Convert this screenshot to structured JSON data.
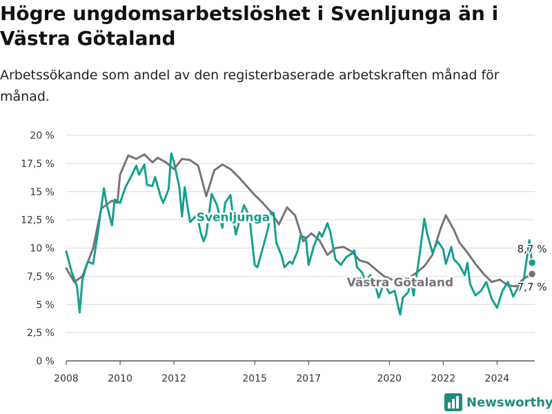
{
  "title": "Högre ungdomsarbetslöshet i Svenljunga än i Västra Götaland",
  "subtitle": "Arbetssökande som andel av den registerbaserade arbetskraften månad för månad.",
  "brand": {
    "name": "Newsworthy",
    "color": "#1f8c7e"
  },
  "chart_data": {
    "type": "line",
    "title": "Högre ungdomsarbetslöshet i Svenljunga än i Västra Götaland",
    "subtitle": "Arbetssökande som andel av den registerbaserade arbetskraften månad för månad.",
    "xlabel": "",
    "ylabel": "",
    "xlim": [
      2008.0,
      2025.4
    ],
    "ylim": [
      0,
      20
    ],
    "x_ticks": [
      2008,
      2010,
      2012,
      2015,
      2017,
      2020,
      2022,
      2024
    ],
    "x_tick_labels": [
      "2008",
      "2010",
      "2012",
      "2015",
      "2017",
      "2020",
      "2022",
      "2024"
    ],
    "y_ticks": [
      0,
      2.5,
      5,
      7.5,
      10,
      12.5,
      15,
      17.5,
      20
    ],
    "y_tick_labels": [
      "0 %",
      "2,5 %",
      "5 %",
      "7,5 %",
      "10 %",
      "12,5 %",
      "15 %",
      "17,5 %",
      "20 %"
    ],
    "grid": true,
    "legend": "direct labels on lines",
    "series": [
      {
        "name": "Svenljunga",
        "color": "#12a08c",
        "end_label": "8,7 %",
        "points": [
          [
            2008.0,
            9.7
          ],
          [
            2008.2,
            7.9
          ],
          [
            2008.4,
            6.6
          ],
          [
            2008.5,
            4.3
          ],
          [
            2008.6,
            7.2
          ],
          [
            2008.8,
            8.8
          ],
          [
            2009.0,
            8.6
          ],
          [
            2009.2,
            11.8
          ],
          [
            2009.4,
            15.3
          ],
          [
            2009.5,
            13.9
          ],
          [
            2009.7,
            12.0
          ],
          [
            2009.8,
            14.3
          ],
          [
            2010.0,
            14.0
          ],
          [
            2010.2,
            15.4
          ],
          [
            2010.4,
            16.3
          ],
          [
            2010.6,
            17.3
          ],
          [
            2010.7,
            16.5
          ],
          [
            2010.9,
            17.4
          ],
          [
            2011.0,
            15.6
          ],
          [
            2011.2,
            15.5
          ],
          [
            2011.3,
            16.3
          ],
          [
            2011.5,
            14.6
          ],
          [
            2011.6,
            14.0
          ],
          [
            2011.8,
            15.2
          ],
          [
            2011.9,
            18.4
          ],
          [
            2012.0,
            17.6
          ],
          [
            2012.2,
            15.4
          ],
          [
            2012.3,
            12.8
          ],
          [
            2012.4,
            15.4
          ],
          [
            2012.5,
            13.7
          ],
          [
            2012.6,
            12.3
          ],
          [
            2012.8,
            12.8
          ],
          [
            2012.9,
            12.5
          ],
          [
            2013.0,
            11.3
          ],
          [
            2013.1,
            10.6
          ],
          [
            2013.2,
            11.2
          ],
          [
            2013.4,
            14.8
          ],
          [
            2013.6,
            13.8
          ],
          [
            2013.8,
            11.8
          ],
          [
            2013.9,
            14.0
          ],
          [
            2014.1,
            14.7
          ],
          [
            2014.2,
            12.7
          ],
          [
            2014.3,
            11.2
          ],
          [
            2014.5,
            13.0
          ],
          [
            2014.6,
            13.8
          ],
          [
            2014.8,
            12.8
          ],
          [
            2015.0,
            8.5
          ],
          [
            2015.1,
            8.3
          ],
          [
            2015.3,
            10.0
          ],
          [
            2015.5,
            11.8
          ],
          [
            2015.6,
            13.2
          ],
          [
            2015.7,
            13.1
          ],
          [
            2015.8,
            10.5
          ],
          [
            2016.0,
            9.3
          ],
          [
            2016.1,
            8.3
          ],
          [
            2016.3,
            8.8
          ],
          [
            2016.4,
            8.6
          ],
          [
            2016.6,
            9.8
          ],
          [
            2016.7,
            11.1
          ],
          [
            2016.9,
            10.9
          ],
          [
            2017.0,
            8.5
          ],
          [
            2017.2,
            10.2
          ],
          [
            2017.4,
            11.4
          ],
          [
            2017.5,
            11.0
          ],
          [
            2017.7,
            12.2
          ],
          [
            2017.8,
            11.5
          ],
          [
            2018.0,
            9.0
          ],
          [
            2018.2,
            8.5
          ],
          [
            2018.4,
            9.2
          ],
          [
            2018.6,
            9.5
          ],
          [
            2018.7,
            9.8
          ],
          [
            2018.8,
            8.3
          ],
          [
            2019.0,
            7.8
          ],
          [
            2019.1,
            7.0
          ],
          [
            2019.3,
            7.6
          ],
          [
            2019.5,
            6.5
          ],
          [
            2019.6,
            5.6
          ],
          [
            2019.8,
            6.9
          ],
          [
            2020.0,
            6.0
          ],
          [
            2020.2,
            6.2
          ],
          [
            2020.3,
            5.1
          ],
          [
            2020.4,
            4.1
          ],
          [
            2020.5,
            5.6
          ],
          [
            2020.7,
            6.1
          ],
          [
            2020.8,
            7.2
          ],
          [
            2020.9,
            5.8
          ],
          [
            2021.1,
            9.0
          ],
          [
            2021.3,
            12.6
          ],
          [
            2021.4,
            11.3
          ],
          [
            2021.6,
            9.6
          ],
          [
            2021.8,
            10.6
          ],
          [
            2022.0,
            9.9
          ],
          [
            2022.1,
            8.6
          ],
          [
            2022.3,
            10.1
          ],
          [
            2022.4,
            9.0
          ],
          [
            2022.6,
            8.5
          ],
          [
            2022.8,
            7.6
          ],
          [
            2022.9,
            8.7
          ],
          [
            2023.0,
            6.8
          ],
          [
            2023.2,
            5.8
          ],
          [
            2023.4,
            6.2
          ],
          [
            2023.6,
            7.0
          ],
          [
            2023.8,
            5.5
          ],
          [
            2024.0,
            4.7
          ],
          [
            2024.2,
            6.2
          ],
          [
            2024.4,
            7.0
          ],
          [
            2024.6,
            5.7
          ],
          [
            2024.8,
            6.6
          ],
          [
            2025.0,
            7.3
          ],
          [
            2025.1,
            9.0
          ],
          [
            2025.2,
            10.7
          ],
          [
            2025.3,
            8.7
          ]
        ]
      },
      {
        "name": "Västra Götaland",
        "color": "#777278",
        "end_label": "7,7 %",
        "points": [
          [
            2008.0,
            8.2
          ],
          [
            2008.3,
            7.0
          ],
          [
            2008.6,
            7.5
          ],
          [
            2009.0,
            10.0
          ],
          [
            2009.3,
            13.5
          ],
          [
            2009.7,
            14.2
          ],
          [
            2009.9,
            14.0
          ],
          [
            2010.0,
            16.5
          ],
          [
            2010.3,
            18.2
          ],
          [
            2010.6,
            17.9
          ],
          [
            2010.9,
            18.3
          ],
          [
            2011.2,
            17.6
          ],
          [
            2011.4,
            18.0
          ],
          [
            2011.7,
            17.6
          ],
          [
            2012.0,
            17.0
          ],
          [
            2012.3,
            17.9
          ],
          [
            2012.6,
            17.8
          ],
          [
            2012.9,
            17.3
          ],
          [
            2013.2,
            14.6
          ],
          [
            2013.5,
            16.9
          ],
          [
            2013.8,
            17.4
          ],
          [
            2014.1,
            17.0
          ],
          [
            2014.4,
            16.3
          ],
          [
            2014.7,
            15.5
          ],
          [
            2015.0,
            14.7
          ],
          [
            2015.3,
            14.0
          ],
          [
            2015.6,
            13.2
          ],
          [
            2015.9,
            12.1
          ],
          [
            2016.2,
            13.6
          ],
          [
            2016.5,
            12.9
          ],
          [
            2016.8,
            10.6
          ],
          [
            2017.1,
            11.3
          ],
          [
            2017.4,
            10.7
          ],
          [
            2017.7,
            9.4
          ],
          [
            2018.0,
            10.0
          ],
          [
            2018.3,
            10.1
          ],
          [
            2018.6,
            9.7
          ],
          [
            2018.9,
            8.9
          ],
          [
            2019.2,
            8.7
          ],
          [
            2019.5,
            8.1
          ],
          [
            2019.8,
            7.5
          ],
          [
            2020.1,
            7.2
          ],
          [
            2020.4,
            6.9
          ],
          [
            2020.7,
            7.3
          ],
          [
            2021.0,
            7.8
          ],
          [
            2021.3,
            8.4
          ],
          [
            2021.6,
            9.4
          ],
          [
            2021.9,
            11.7
          ],
          [
            2022.1,
            12.9
          ],
          [
            2022.4,
            11.6
          ],
          [
            2022.6,
            10.5
          ],
          [
            2022.9,
            9.6
          ],
          [
            2023.2,
            8.6
          ],
          [
            2023.5,
            7.7
          ],
          [
            2023.8,
            7.0
          ],
          [
            2024.1,
            7.2
          ],
          [
            2024.4,
            6.7
          ],
          [
            2024.7,
            6.6
          ],
          [
            2025.0,
            7.3
          ],
          [
            2025.3,
            7.7
          ]
        ]
      }
    ],
    "annotations": [
      {
        "text": "Svenljunga",
        "series": "Svenljunga",
        "x": 2014.2,
        "y": 12.4
      },
      {
        "text": "Västra Götaland",
        "series": "Västra Götaland",
        "x": 2020.4,
        "y": 6.6
      }
    ]
  }
}
